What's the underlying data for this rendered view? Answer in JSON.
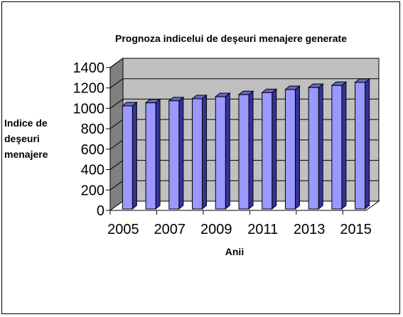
{
  "chart_data": {
    "type": "bar",
    "title": "Prognoza indicelui de deşeuri menajere generate",
    "ylabel_lines": [
      "Indice de",
      "deşeuri",
      "menajere"
    ],
    "xlabel": "Anii",
    "categories": [
      "2005",
      "2006",
      "2007",
      "2008",
      "2009",
      "2010",
      "2011",
      "2012",
      "2013",
      "2014",
      "2015"
    ],
    "x_tick_labels": [
      "2005",
      "2007",
      "2009",
      "2011",
      "2013",
      "2015"
    ],
    "series": [
      {
        "values": [
          1010,
          1040,
          1060,
          1080,
          1100,
          1120,
          1140,
          1170,
          1190,
          1210,
          1240
        ]
      }
    ],
    "ylim": [
      0,
      1400
    ],
    "yticks": [
      "0",
      "200",
      "400",
      "600",
      "800",
      "1000",
      "1200",
      "1400"
    ],
    "grid": true,
    "legend": "none",
    "style": "3d-column",
    "colors": {
      "bar_front": "#9999ff",
      "bar_side": "#333399",
      "bar_top": "#6666cc",
      "back_wall": "#c0c0c0",
      "side_wall": "#808080",
      "floor": "#ffffff",
      "gridline": "#000000"
    }
  }
}
